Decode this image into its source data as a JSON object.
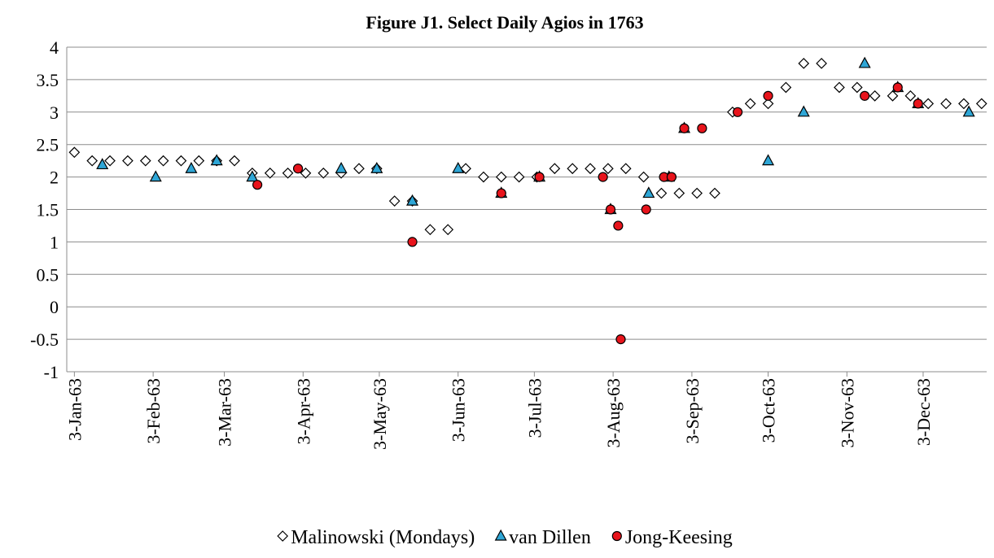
{
  "chart_data": {
    "type": "scatter",
    "title": "Figure J1. Select Daily Agios in 1763",
    "xlim": [
      "31-Dec-62",
      "28-Dec-63"
    ],
    "xticks": [
      "3-Jan-63",
      "3-Feb-63",
      "3-Mar-63",
      "3-Apr-63",
      "3-May-63",
      "3-Jun-63",
      "3-Jul-63",
      "3-Aug-63",
      "3-Sep-63",
      "3-Oct-63",
      "3-Nov-63",
      "3-Dec-63"
    ],
    "ylim": [
      -1,
      4
    ],
    "yticks": [
      -1,
      -0.5,
      0,
      0.5,
      1,
      1.5,
      2,
      2.5,
      3,
      3.5,
      4
    ],
    "grid": true,
    "legend": "bottom",
    "series": [
      {
        "name": "Malinowski (Mondays)",
        "marker": "diamond",
        "color": "#ffffff",
        "x": [
          "3-Jan-63",
          "10-Jan-63",
          "17-Jan-63",
          "24-Jan-63",
          "31-Jan-63",
          "7-Feb-63",
          "14-Feb-63",
          "21-Feb-63",
          "28-Feb-63",
          "7-Mar-63",
          "14-Mar-63",
          "21-Mar-63",
          "28-Mar-63",
          "4-Apr-63",
          "11-Apr-63",
          "18-Apr-63",
          "25-Apr-63",
          "2-May-63",
          "9-May-63",
          "16-May-63",
          "23-May-63",
          "30-May-63",
          "6-Jun-63",
          "13-Jun-63",
          "20-Jun-63",
          "27-Jun-63",
          "4-Jul-63",
          "11-Jul-63",
          "18-Jul-63",
          "25-Jul-63",
          "1-Aug-63",
          "8-Aug-63",
          "15-Aug-63",
          "22-Aug-63",
          "29-Aug-63",
          "5-Sep-63",
          "12-Sep-63",
          "19-Sep-63",
          "26-Sep-63",
          "3-Oct-63",
          "10-Oct-63",
          "17-Oct-63",
          "24-Oct-63",
          "31-Oct-63",
          "7-Nov-63",
          "14-Nov-63",
          "21-Nov-63",
          "28-Nov-63",
          "5-Dec-63",
          "12-Dec-63",
          "19-Dec-63",
          "26-Dec-63"
        ],
        "values": [
          2.38,
          2.25,
          2.25,
          2.25,
          2.25,
          2.25,
          2.25,
          2.25,
          2.25,
          2.25,
          2.06,
          2.06,
          2.06,
          2.06,
          2.06,
          2.06,
          2.13,
          2.13,
          1.63,
          1.63,
          1.19,
          1.19,
          2.13,
          2.0,
          2.0,
          2.0,
          2.0,
          2.13,
          2.13,
          2.13,
          2.13,
          2.13,
          2.0,
          1.75,
          1.75,
          1.75,
          1.75,
          3.0,
          3.13,
          3.13,
          3.38,
          3.75,
          3.75,
          3.38,
          3.38,
          3.25,
          3.25,
          3.25,
          3.13,
          3.13,
          3.13,
          3.13
        ]
      },
      {
        "name": "van Dillen",
        "marker": "triangle",
        "color": "#2ea6d6",
        "x": [
          "14-Jan-63",
          "4-Feb-63",
          "18-Feb-63",
          "28-Feb-63",
          "14-Mar-63",
          "18-Apr-63",
          "2-May-63",
          "16-May-63",
          "3-Jun-63",
          "20-Jun-63",
          "5-Jul-63",
          "2-Aug-63",
          "17-Aug-63",
          "25-Aug-63",
          "31-Aug-63",
          "3-Oct-63",
          "17-Oct-63",
          "10-Nov-63",
          "23-Nov-63",
          "1-Dec-63",
          "21-Dec-63"
        ],
        "values": [
          2.19,
          2.0,
          2.13,
          2.25,
          2.0,
          2.13,
          2.13,
          1.63,
          2.13,
          1.75,
          2.0,
          1.5,
          1.75,
          2.0,
          2.75,
          2.25,
          3.0,
          3.75,
          3.38,
          3.13,
          3.0
        ]
      },
      {
        "name": "Jong-Keesing",
        "marker": "circle",
        "color": "#e8141c",
        "x": [
          "16-Mar-63",
          "1-Apr-63",
          "16-May-63",
          "20-Jun-63",
          "5-Jul-63",
          "30-Jul-63",
          "2-Aug-63",
          "5-Aug-63",
          "6-Aug-63",
          "16-Aug-63",
          "23-Aug-63",
          "26-Aug-63",
          "31-Aug-63",
          "7-Sep-63",
          "21-Sep-63",
          "3-Oct-63",
          "10-Nov-63",
          "23-Nov-63",
          "1-Dec-63"
        ],
        "values": [
          1.88,
          2.13,
          1.0,
          1.75,
          2.0,
          2.0,
          1.5,
          1.25,
          -0.5,
          1.5,
          2.0,
          2.0,
          2.75,
          2.75,
          3.0,
          3.25,
          3.25,
          3.38,
          3.13
        ]
      }
    ]
  }
}
